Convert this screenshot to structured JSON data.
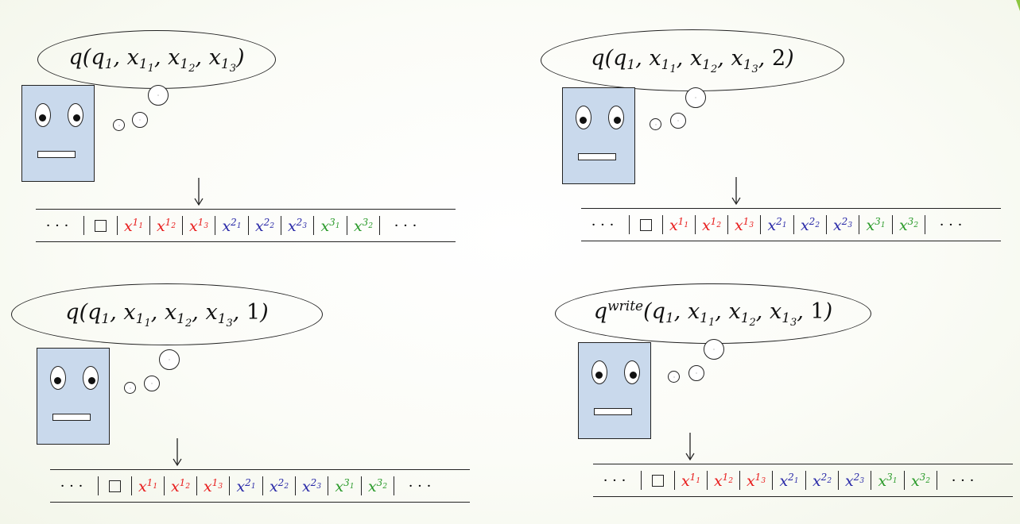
{
  "colors": {
    "background": "#fbfcf7",
    "robot_face": "#c9d9ec",
    "accent": "#8cc63f",
    "red_cells": "#e81c1c",
    "blue_cells": "#2a2aa8",
    "green_cells": "#2a9a2a"
  },
  "icons": {
    "robot": "robot-face-icon",
    "arrow": "down-arrow-icon",
    "blank": "blank-square-symbol"
  },
  "panels": [
    {
      "id": "top-left",
      "label_prefix": "q",
      "label_superscript": "",
      "label_args": [
        "q1",
        "x11",
        "x12",
        "x13"
      ],
      "label_extra": "",
      "tape": {
        "left_ellipsis": "· · ·",
        "right_ellipsis": "· · ·",
        "blank": "□",
        "head_position": 3,
        "cells": [
          {
            "var": "x",
            "sub": "1",
            "subsub": "1",
            "color": "red"
          },
          {
            "var": "x",
            "sub": "1",
            "subsub": "2",
            "color": "red"
          },
          {
            "var": "x",
            "sub": "1",
            "subsub": "3",
            "color": "red"
          },
          {
            "var": "x",
            "sub": "2",
            "subsub": "1",
            "color": "blue"
          },
          {
            "var": "x",
            "sub": "2",
            "subsub": "2",
            "color": "blue"
          },
          {
            "var": "x",
            "sub": "2",
            "subsub": "3",
            "color": "blue"
          },
          {
            "var": "x",
            "sub": "3",
            "subsub": "1",
            "color": "green"
          },
          {
            "var": "x",
            "sub": "3",
            "subsub": "2",
            "color": "green"
          }
        ]
      }
    },
    {
      "id": "top-right",
      "label_prefix": "q",
      "label_superscript": "",
      "label_args": [
        "q1",
        "x11",
        "x12",
        "x13"
      ],
      "label_extra": "2",
      "tape": {
        "left_ellipsis": "· · ·",
        "right_ellipsis": "· · ·",
        "blank": "□",
        "head_position": 3,
        "cells": [
          {
            "var": "x",
            "sub": "1",
            "subsub": "1",
            "color": "red"
          },
          {
            "var": "x",
            "sub": "1",
            "subsub": "2",
            "color": "red"
          },
          {
            "var": "x",
            "sub": "1",
            "subsub": "3",
            "color": "red"
          },
          {
            "var": "x",
            "sub": "2",
            "subsub": "1",
            "color": "blue"
          },
          {
            "var": "x",
            "sub": "2",
            "subsub": "2",
            "color": "blue"
          },
          {
            "var": "x",
            "sub": "2",
            "subsub": "3",
            "color": "blue"
          },
          {
            "var": "x",
            "sub": "3",
            "subsub": "1",
            "color": "green"
          },
          {
            "var": "x",
            "sub": "3",
            "subsub": "2",
            "color": "green"
          }
        ]
      }
    },
    {
      "id": "bottom-left",
      "label_prefix": "q",
      "label_superscript": "",
      "label_args": [
        "q1",
        "x11",
        "x12",
        "x13"
      ],
      "label_extra": "1",
      "tape": {
        "left_ellipsis": "· · ·",
        "right_ellipsis": "· · ·",
        "blank": "□",
        "head_position": 2,
        "cells": [
          {
            "var": "x",
            "sub": "1",
            "subsub": "1",
            "color": "red"
          },
          {
            "var": "x",
            "sub": "1",
            "subsub": "2",
            "color": "red"
          },
          {
            "var": "x",
            "sub": "1",
            "subsub": "3",
            "color": "red"
          },
          {
            "var": "x",
            "sub": "2",
            "subsub": "1",
            "color": "blue"
          },
          {
            "var": "x",
            "sub": "2",
            "subsub": "2",
            "color": "blue"
          },
          {
            "var": "x",
            "sub": "2",
            "subsub": "3",
            "color": "blue"
          },
          {
            "var": "x",
            "sub": "3",
            "subsub": "1",
            "color": "green"
          },
          {
            "var": "x",
            "sub": "3",
            "subsub": "2",
            "color": "green"
          }
        ]
      }
    },
    {
      "id": "bottom-right",
      "label_prefix": "q",
      "label_superscript": "write",
      "label_args": [
        "q1",
        "x11",
        "x12",
        "x13"
      ],
      "label_extra": "1",
      "tape": {
        "left_ellipsis": "· · ·",
        "right_ellipsis": "· · ·",
        "blank": "□",
        "head_position": 1,
        "cells": [
          {
            "var": "x",
            "sub": "1",
            "subsub": "1",
            "color": "red"
          },
          {
            "var": "x",
            "sub": "1",
            "subsub": "2",
            "color": "red"
          },
          {
            "var": "x",
            "sub": "1",
            "subsub": "3",
            "color": "red"
          },
          {
            "var": "x",
            "sub": "2",
            "subsub": "1",
            "color": "blue"
          },
          {
            "var": "x",
            "sub": "2",
            "subsub": "2",
            "color": "blue"
          },
          {
            "var": "x",
            "sub": "2",
            "subsub": "3",
            "color": "blue"
          },
          {
            "var": "x",
            "sub": "3",
            "subsub": "1",
            "color": "green"
          },
          {
            "var": "x",
            "sub": "3",
            "subsub": "2",
            "color": "green"
          }
        ]
      }
    }
  ]
}
